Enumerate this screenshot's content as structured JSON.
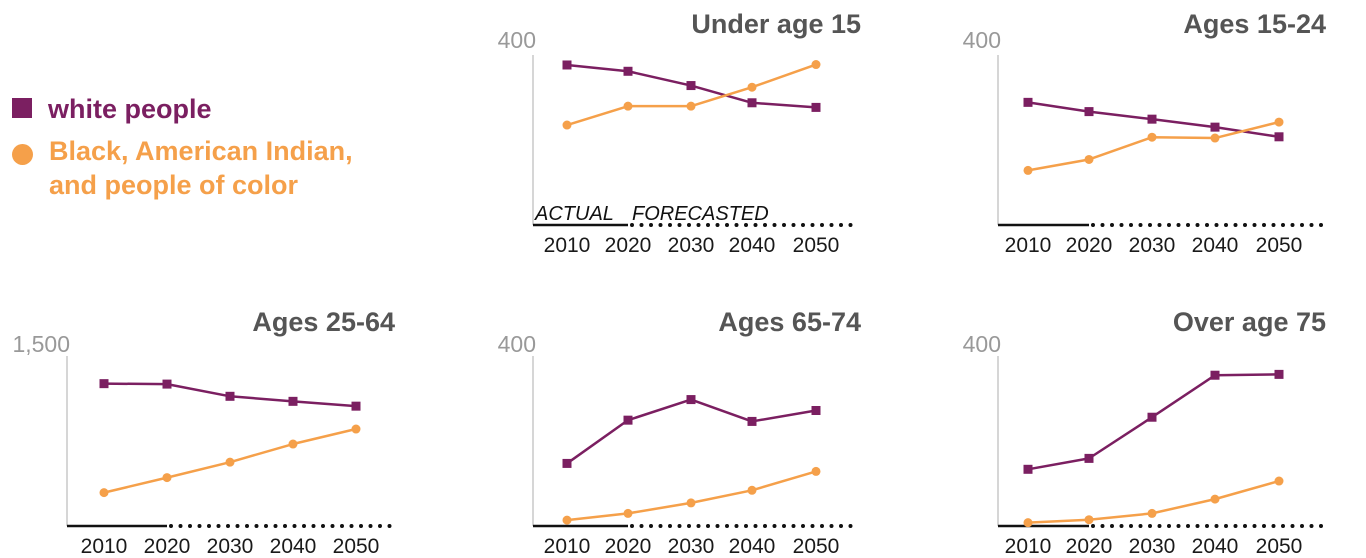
{
  "colors": {
    "white_people": "#7b1f61",
    "people_of_color": "#f5a04a",
    "axis": "#bbbbbb",
    "baseline": "#111111",
    "title": "#555555"
  },
  "legend": {
    "items": [
      {
        "label": "white people",
        "marker": "square",
        "color": "#7b1f61"
      },
      {
        "label": "Black, American Indian, and people of color",
        "marker": "circle",
        "color": "#f5a04a"
      }
    ]
  },
  "chart_data": [
    {
      "type": "line",
      "title": "Under age 15",
      "ylim": [
        0,
        400
      ],
      "ymax_label": "400",
      "x": [
        "2010",
        "2020",
        "2030",
        "2040",
        "2050"
      ],
      "period_labels": {
        "actual": "ACTUAL",
        "forecasted": "FORECASTED"
      },
      "series": [
        {
          "name": "white people",
          "values": [
            381,
            366,
            332,
            291,
            280
          ]
        },
        {
          "name": "Black, American Indian, and people of color",
          "values": [
            238,
            283,
            283,
            328,
            382
          ]
        }
      ]
    },
    {
      "type": "line",
      "title": "Ages 15-24",
      "ylim": [
        0,
        400
      ],
      "ymax_label": "400",
      "x": [
        "2010",
        "2020",
        "2030",
        "2040",
        "2050"
      ],
      "series": [
        {
          "name": "white people",
          "values": [
            292,
            270,
            252,
            233,
            210
          ]
        },
        {
          "name": "Black, American Indian, and people of color",
          "values": [
            130,
            156,
            209,
            207,
            245
          ]
        }
      ]
    },
    {
      "type": "line",
      "title": "Ages 25-64",
      "ylim": [
        0,
        1500
      ],
      "ymax_label": "1,500",
      "x": [
        "2010",
        "2020",
        "2030",
        "2040",
        "2050"
      ],
      "series": [
        {
          "name": "white people",
          "values": [
            1271,
            1267,
            1158,
            1113,
            1070
          ]
        },
        {
          "name": "Black, American Indian, and people of color",
          "values": [
            298,
            432,
            570,
            732,
            866
          ]
        }
      ]
    },
    {
      "type": "line",
      "title": "Ages 65-74",
      "ylim": [
        0,
        400
      ],
      "ymax_label": "400",
      "x": [
        "2010",
        "2020",
        "2030",
        "2040",
        "2050"
      ],
      "series": [
        {
          "name": "white people",
          "values": [
            149,
            252,
            301,
            249,
            275
          ]
        },
        {
          "name": "Black, American Indian, and people of color",
          "values": [
            14,
            30,
            55,
            85,
            130
          ]
        }
      ]
    },
    {
      "type": "line",
      "title": "Over age 75",
      "ylim": [
        0,
        400
      ],
      "ymax_label": "400",
      "x": [
        "2010",
        "2020",
        "2030",
        "2040",
        "2050"
      ],
      "series": [
        {
          "name": "white people",
          "values": [
            135,
            161,
            259,
            359,
            361
          ]
        },
        {
          "name": "Black, American Indian, and people of color",
          "values": [
            8,
            15,
            30,
            64,
            107
          ]
        }
      ]
    }
  ]
}
